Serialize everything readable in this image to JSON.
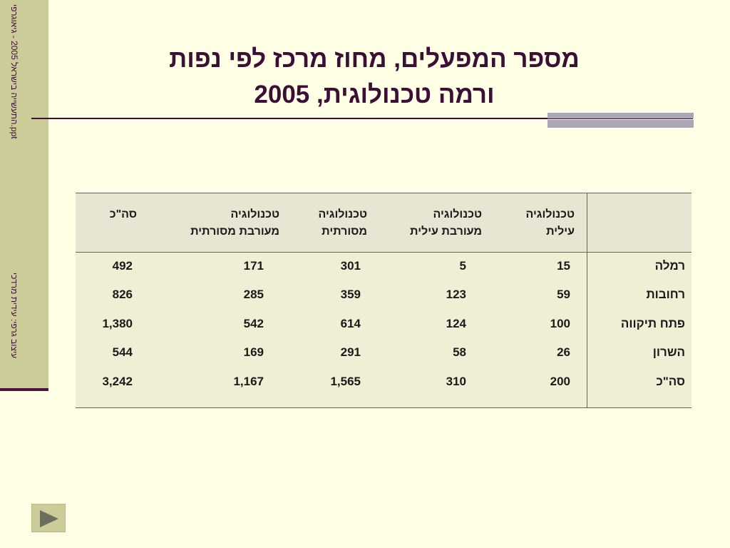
{
  "sidebar": {
    "top_text": "התעשייה בישראל 2005 - גיאוגרפי.ppt",
    "bottom_text": "עיצוב גרפי: עידית מרדכי"
  },
  "title": {
    "line1": "מספר המפעלים, מחוז מרכז  לפי נפות",
    "line2": "ורמה טכנולוגית, 2005"
  },
  "table": {
    "headers": [
      {
        "line1": "טכנולוגיה",
        "line2": "עילית"
      },
      {
        "line1": "טכנולוגיה",
        "line2": "מעורבת עילית"
      },
      {
        "line1": "טכנולוגיה",
        "line2": "מסורתית"
      },
      {
        "line1": "טכנולוגיה",
        "line2": "מעורבת מסורתית"
      },
      {
        "line1": "",
        "line2": "סה\"כ"
      }
    ],
    "rows": [
      {
        "name": "רמלה",
        "values": [
          "15",
          "5",
          "301",
          "171",
          "492"
        ]
      },
      {
        "name": "רחובות",
        "values": [
          "59",
          "123",
          "359",
          "285",
          "826"
        ]
      },
      {
        "name": "פתח תיקווה",
        "values": [
          "100",
          "124",
          "614",
          "542",
          "1,380"
        ]
      },
      {
        "name": "השרון",
        "values": [
          "26",
          "58",
          "291",
          "169",
          "544"
        ]
      },
      {
        "name": "סה\"כ",
        "values": [
          "200",
          "310",
          "1,565",
          "1,167",
          "3,242"
        ]
      }
    ]
  },
  "nav": {
    "icon": "play-triangle-icon"
  },
  "colors": {
    "background": "#FFFFE6",
    "sidebar": "#CCCC99",
    "title": "#3B0F36",
    "accent": "#A8A7B3"
  }
}
